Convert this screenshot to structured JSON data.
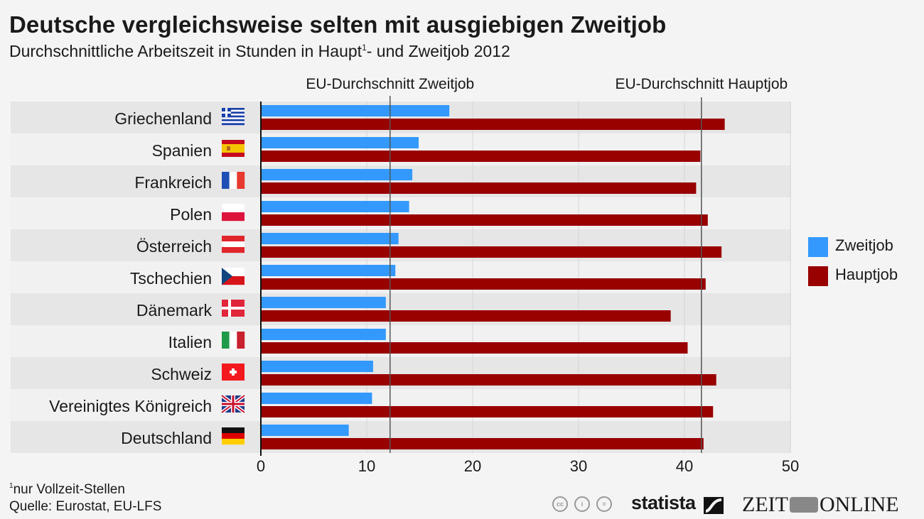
{
  "header": {
    "title": "Deutsche vergleichsweise selten mit ausgiebigen Zweitjob",
    "subtitle_before": "Durchschnittliche Arbeitszeit in Stunden in Haupt",
    "subtitle_sup": "1",
    "subtitle_after": "- und Zweitjob 2012"
  },
  "chart_data": {
    "type": "bar",
    "orientation": "horizontal",
    "title": "Deutsche vergleichsweise selten mit ausgiebigen Zweitjob",
    "subtitle": "Durchschnittliche Arbeitszeit in Stunden in Haupt¹- und Zweitjob 2012",
    "xlabel": "",
    "ylabel": "",
    "xlim": [
      0,
      50
    ],
    "xticks": [
      0,
      10,
      20,
      30,
      40,
      50
    ],
    "grid": true,
    "legend_position": "right",
    "categories": [
      "Griechenland",
      "Spanien",
      "Frankreich",
      "Polen",
      "Österreich",
      "Tschechien",
      "Dänemark",
      "Italien",
      "Schweiz",
      "Vereinigtes Königreich",
      "Deutschland"
    ],
    "flags": [
      "greece-flag",
      "spain-flag",
      "france-flag",
      "poland-flag",
      "austria-flag",
      "czech-flag",
      "denmark-flag",
      "italy-flag",
      "switzerland-flag",
      "uk-flag",
      "germany-flag"
    ],
    "series": [
      {
        "name": "Zweitjob",
        "color": "#3399ff",
        "values": [
          17.8,
          14.9,
          14.3,
          14.0,
          13.0,
          12.7,
          11.8,
          11.8,
          10.6,
          10.5,
          8.3
        ]
      },
      {
        "name": "Hauptjob",
        "color": "#990000",
        "values": [
          43.8,
          41.5,
          41.1,
          42.2,
          43.5,
          42.0,
          38.7,
          40.3,
          43.0,
          42.7,
          41.8
        ]
      }
    ],
    "reference_lines": [
      {
        "label": "EU-Durchschnitt Zweitjob",
        "value": 12.2
      },
      {
        "label": "EU-Durchschnitt Hauptjob",
        "value": 41.6
      }
    ]
  },
  "footer": {
    "note_sup": "1",
    "note": "nur Vollzeit-Stellen",
    "source": "Quelle: Eurostat, EU-LFS",
    "cc_icons": [
      "cc",
      "i",
      "="
    ],
    "statista": "statista",
    "zeit_left": "ZEIT",
    "zeit_right": "ONLINE"
  }
}
